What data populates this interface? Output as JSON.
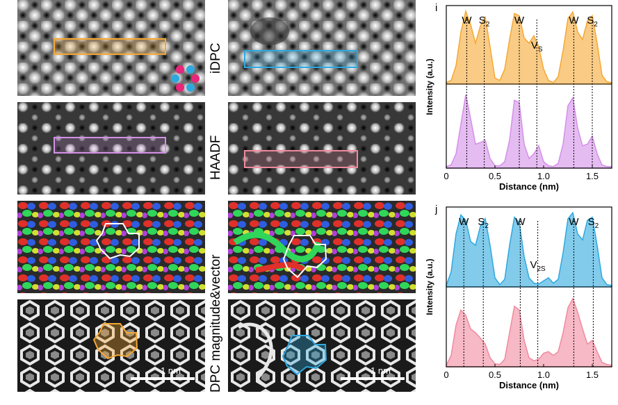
{
  "figure": {
    "row_labels": {
      "idpc": "iDPC",
      "haadf": "HAADF",
      "dpc": "DPC magnitude&vector"
    },
    "scale_bar": "1 nm"
  },
  "chart_data": [
    {
      "panel": "i",
      "type": "area",
      "xlabel": "Distance (nm)",
      "ylabel": "Intensity (a.u.)",
      "xlim": [
        0,
        1.7
      ],
      "xticks": [
        "0",
        "0.5",
        "1.0",
        "1.5"
      ],
      "peak_lines": [
        0.21,
        0.39,
        0.75,
        0.93,
        1.31,
        1.5
      ],
      "peak_labels": [
        {
          "x": 0.21,
          "text": "W",
          "sub": ""
        },
        {
          "x": 0.39,
          "text": "S",
          "sub": "2"
        },
        {
          "x": 0.75,
          "text": "W",
          "sub": ""
        },
        {
          "x": 0.93,
          "text": "V",
          "sub": "S"
        },
        {
          "x": 1.31,
          "text": "W",
          "sub": ""
        },
        {
          "x": 1.5,
          "text": "S",
          "sub": "2"
        }
      ],
      "series": [
        {
          "color": "#f5a833",
          "x": [
            0,
            0.05,
            0.1,
            0.15,
            0.2,
            0.25,
            0.3,
            0.35,
            0.4,
            0.45,
            0.5,
            0.55,
            0.6,
            0.65,
            0.7,
            0.75,
            0.8,
            0.85,
            0.9,
            0.95,
            1.0,
            1.05,
            1.1,
            1.15,
            1.2,
            1.25,
            1.3,
            1.35,
            1.4,
            1.45,
            1.5,
            1.55,
            1.6,
            1.65,
            1.7
          ],
          "y": [
            0.02,
            0.05,
            0.25,
            0.7,
            0.98,
            0.8,
            0.55,
            0.78,
            0.9,
            0.5,
            0.08,
            0.05,
            0.2,
            0.6,
            0.95,
            0.92,
            0.62,
            0.55,
            0.65,
            0.5,
            0.2,
            0.05,
            0.02,
            0.1,
            0.45,
            0.88,
            0.97,
            0.7,
            0.6,
            0.85,
            0.92,
            0.55,
            0.12,
            0.03,
            0.02
          ]
        },
        {
          "color": "#d48fe8",
          "x": [
            0,
            0.05,
            0.1,
            0.15,
            0.2,
            0.25,
            0.3,
            0.35,
            0.4,
            0.45,
            0.5,
            0.55,
            0.6,
            0.65,
            0.7,
            0.75,
            0.8,
            0.85,
            0.9,
            0.95,
            1.0,
            1.05,
            1.1,
            1.15,
            1.2,
            1.25,
            1.3,
            1.35,
            1.4,
            1.45,
            1.5,
            1.55,
            1.6,
            1.65,
            1.7
          ],
          "y": [
            0.02,
            0.04,
            0.18,
            0.55,
            0.92,
            0.62,
            0.3,
            0.32,
            0.35,
            0.12,
            0.03,
            0.03,
            0.08,
            0.35,
            0.85,
            0.82,
            0.3,
            0.12,
            0.18,
            0.28,
            0.08,
            0.03,
            0.02,
            0.06,
            0.3,
            0.78,
            0.88,
            0.5,
            0.28,
            0.3,
            0.4,
            0.18,
            0.04,
            0.02,
            0.02
          ]
        }
      ]
    },
    {
      "panel": "j",
      "type": "area",
      "xlabel": "Distance (nm)",
      "ylabel": "Intensity (a.u.)",
      "xlim": [
        0,
        1.7
      ],
      "xticks": [
        "0",
        "0.5",
        "1.0",
        "1.5"
      ],
      "peak_lines": [
        0.18,
        0.38,
        0.76,
        0.94,
        1.31,
        1.51
      ],
      "peak_labels": [
        {
          "x": 0.18,
          "text": "W",
          "sub": ""
        },
        {
          "x": 0.38,
          "text": "S",
          "sub": "2"
        },
        {
          "x": 0.76,
          "text": "W",
          "sub": ""
        },
        {
          "x": 0.94,
          "text": "V",
          "sub": "2S"
        },
        {
          "x": 1.31,
          "text": "W",
          "sub": ""
        },
        {
          "x": 1.51,
          "text": "S",
          "sub": "2"
        }
      ],
      "series": [
        {
          "color": "#2ea8de",
          "x": [
            0,
            0.05,
            0.1,
            0.15,
            0.2,
            0.25,
            0.3,
            0.35,
            0.4,
            0.45,
            0.5,
            0.55,
            0.6,
            0.65,
            0.7,
            0.75,
            0.8,
            0.85,
            0.9,
            0.95,
            1.0,
            1.05,
            1.1,
            1.15,
            1.2,
            1.25,
            1.3,
            1.35,
            1.4,
            1.45,
            1.5,
            1.55,
            1.6,
            1.65,
            1.7
          ],
          "y": [
            0.02,
            0.2,
            0.7,
            0.95,
            0.88,
            0.6,
            0.55,
            0.8,
            0.9,
            0.55,
            0.12,
            0.03,
            0.1,
            0.55,
            0.92,
            0.85,
            0.4,
            0.12,
            0.05,
            0.04,
            0.08,
            0.12,
            0.05,
            0.1,
            0.45,
            0.9,
            0.98,
            0.7,
            0.62,
            0.88,
            0.92,
            0.55,
            0.12,
            0.03,
            0.02
          ]
        },
        {
          "color": "#f08a9e",
          "x": [
            0,
            0.05,
            0.1,
            0.15,
            0.2,
            0.25,
            0.3,
            0.35,
            0.4,
            0.45,
            0.5,
            0.55,
            0.6,
            0.65,
            0.7,
            0.75,
            0.8,
            0.85,
            0.9,
            0.95,
            1.0,
            1.05,
            1.1,
            1.15,
            1.2,
            1.25,
            1.3,
            1.35,
            1.4,
            1.45,
            1.5,
            1.55,
            1.6,
            1.65,
            1.7
          ],
          "y": [
            0.02,
            0.15,
            0.55,
            0.75,
            0.68,
            0.5,
            0.45,
            0.38,
            0.3,
            0.12,
            0.04,
            0.03,
            0.1,
            0.45,
            0.8,
            0.75,
            0.35,
            0.12,
            0.08,
            0.1,
            0.18,
            0.2,
            0.15,
            0.2,
            0.45,
            0.78,
            0.9,
            0.72,
            0.5,
            0.3,
            0.35,
            0.2,
            0.06,
            0.03,
            0.02
          ]
        }
      ]
    }
  ]
}
